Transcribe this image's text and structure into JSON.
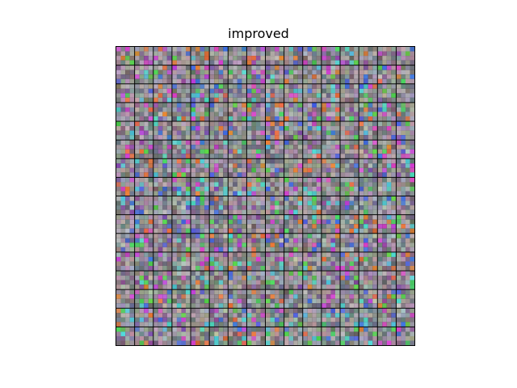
{
  "figure": {
    "title": "improved"
  },
  "image_grid": {
    "rows": 16,
    "cols": 16,
    "separator_color": "#000000",
    "background": "#ffffff",
    "tile_style": "noisy RGB filter visualizations (gray base with magenta, green, blue, cyan and orange texture)"
  }
}
